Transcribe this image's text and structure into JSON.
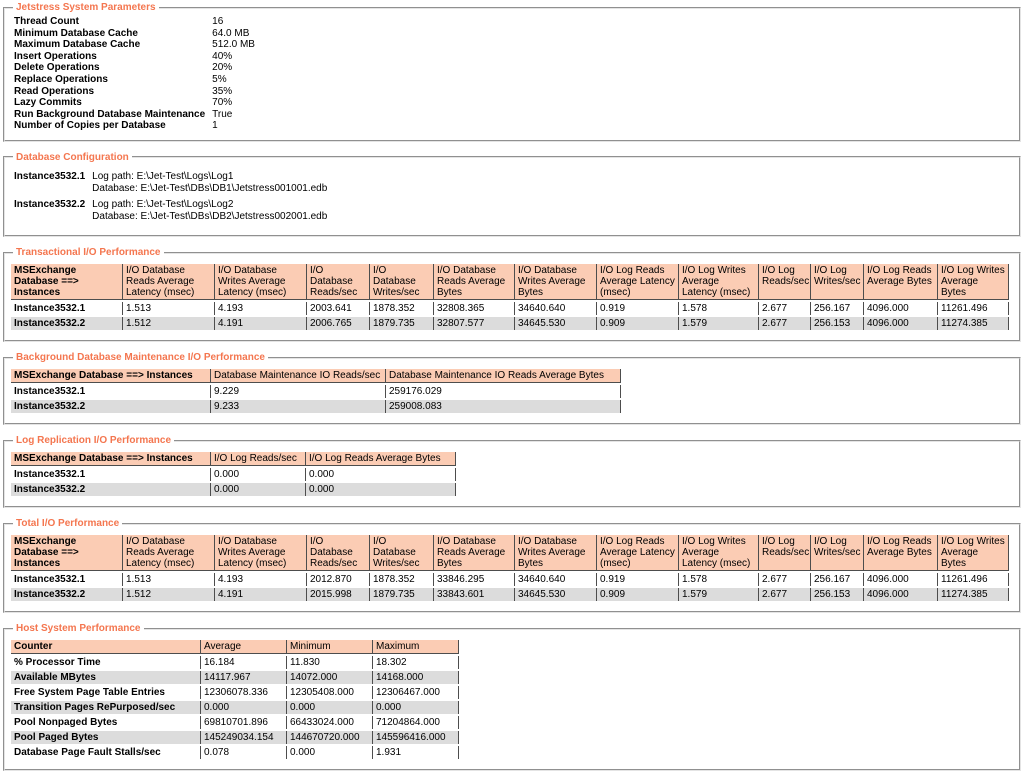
{
  "report": {
    "colors": {
      "legend_text": "#f4764f",
      "table_header_bg": "#fbccb4",
      "row_alt_bg": "#dcdcdc",
      "cell_border": "#4d4d4d"
    },
    "system_parameters": {
      "legend": "Jetstress System Parameters",
      "rows": [
        [
          "Thread Count",
          "16"
        ],
        [
          "Minimum Database Cache",
          "64.0 MB"
        ],
        [
          "Maximum Database Cache",
          "512.0 MB"
        ],
        [
          "Insert Operations",
          "40%"
        ],
        [
          "Delete Operations",
          "20%"
        ],
        [
          "Replace Operations",
          "5%"
        ],
        [
          "Read Operations",
          "35%"
        ],
        [
          "Lazy Commits",
          "70%"
        ],
        [
          "Run Background Database Maintenance",
          "True"
        ],
        [
          "Number of Copies per Database",
          "1"
        ]
      ]
    },
    "database_configuration": {
      "legend": "Database Configuration",
      "rows": [
        [
          "Instance3532.1",
          "Log path: E:\\Jet-Test\\Logs\\Log1\nDatabase: E:\\Jet-Test\\DBs\\DB1\\Jetstress001001.edb"
        ],
        [
          "Instance3532.2",
          "Log path: E:\\Jet-Test\\Logs\\Log2\nDatabase: E:\\Jet-Test\\DBs\\DB2\\Jetstress002001.edb"
        ]
      ]
    },
    "transactional_io": {
      "legend": "Transactional I/O Performance",
      "headers": [
        "MSExchange Database ==> Instances",
        "I/O Database Reads Average Latency (msec)",
        "I/O Database Writes Average Latency (msec)",
        "I/O Database Reads/sec",
        "I/O Database Writes/sec",
        "I/O Database Reads Average Bytes",
        "I/O Database Writes Average Bytes",
        "I/O Log Reads Average Latency (msec)",
        "I/O Log Writes Average Latency (msec)",
        "I/O Log Reads/sec",
        "I/O Log Writes/sec",
        "I/O Log Reads Average Bytes",
        "I/O Log Writes Average Bytes"
      ],
      "rows": [
        [
          "Instance3532.1",
          "1.513",
          "4.193",
          "2003.641",
          "1878.352",
          "32808.365",
          "34640.640",
          "0.919",
          "1.578",
          "2.677",
          "256.167",
          "4096.000",
          "11261.496"
        ],
        [
          "Instance3532.2",
          "1.512",
          "4.191",
          "2006.765",
          "1879.735",
          "32807.577",
          "34645.530",
          "0.909",
          "1.579",
          "2.677",
          "256.153",
          "4096.000",
          "11274.385"
        ]
      ]
    },
    "background_maintenance_io": {
      "legend": "Background Database Maintenance I/O Performance",
      "headers": [
        "MSExchange Database ==> Instances",
        "Database Maintenance IO Reads/sec",
        "Database Maintenance IO Reads Average Bytes"
      ],
      "rows": [
        [
          "Instance3532.1",
          "9.229",
          "259176.029"
        ],
        [
          "Instance3532.2",
          "9.233",
          "259008.083"
        ]
      ]
    },
    "log_replication_io": {
      "legend": "Log Replication I/O Performance",
      "headers": [
        "MSExchange Database ==> Instances",
        "I/O Log Reads/sec",
        "I/O Log Reads Average Bytes"
      ],
      "rows": [
        [
          "Instance3532.1",
          "0.000",
          "0.000"
        ],
        [
          "Instance3532.2",
          "0.000",
          "0.000"
        ]
      ]
    },
    "total_io": {
      "legend": "Total I/O Performance",
      "headers": [
        "MSExchange Database ==> Instances",
        "I/O Database Reads Average Latency (msec)",
        "I/O Database Writes Average Latency (msec)",
        "I/O Database Reads/sec",
        "I/O Database Writes/sec",
        "I/O Database Reads Average Bytes",
        "I/O Database Writes Average Bytes",
        "I/O Log Reads Average Latency (msec)",
        "I/O Log Writes Average Latency (msec)",
        "I/O Log Reads/sec",
        "I/O Log Writes/sec",
        "I/O Log Reads Average Bytes",
        "I/O Log Writes Average Bytes"
      ],
      "rows": [
        [
          "Instance3532.1",
          "1.513",
          "4.193",
          "2012.870",
          "1878.352",
          "33846.295",
          "34640.640",
          "0.919",
          "1.578",
          "2.677",
          "256.167",
          "4096.000",
          "11261.496"
        ],
        [
          "Instance3532.2",
          "1.512",
          "4.191",
          "2015.998",
          "1879.735",
          "33843.601",
          "34645.530",
          "0.909",
          "1.579",
          "2.677",
          "256.153",
          "4096.000",
          "11274.385"
        ]
      ]
    },
    "host_system_performance": {
      "legend": "Host System Performance",
      "headers": [
        "Counter",
        "Average",
        "Minimum",
        "Maximum"
      ],
      "rows": [
        [
          "% Processor Time",
          "16.184",
          "11.830",
          "18.302"
        ],
        [
          "Available MBytes",
          "14117.967",
          "14072.000",
          "14168.000"
        ],
        [
          "Free System Page Table Entries",
          "12306078.336",
          "12305408.000",
          "12306467.000"
        ],
        [
          "Transition Pages RePurposed/sec",
          "0.000",
          "0.000",
          "0.000"
        ],
        [
          "Pool Nonpaged Bytes",
          "69810701.896",
          "66433024.000",
          "71204864.000"
        ],
        [
          "Pool Paged Bytes",
          "145249034.154",
          "144670720.000",
          "145596416.000"
        ],
        [
          "Database Page Fault Stalls/sec",
          "0.078",
          "0.000",
          "1.931"
        ]
      ]
    }
  }
}
